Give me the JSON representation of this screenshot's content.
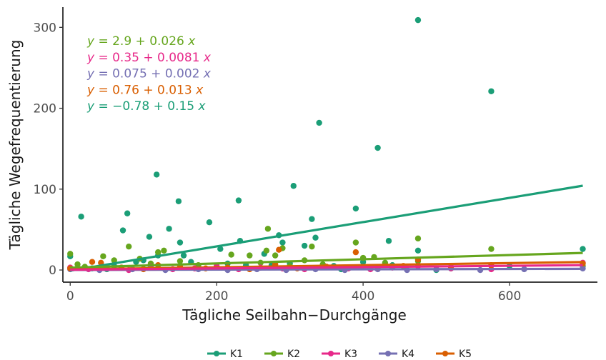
{
  "chart_data": {
    "type": "scatter",
    "xlabel": "Tägliche Seilbahn−Durchgänge",
    "ylabel": "Tägliche Wegefrequentierung",
    "xlim": [
      -10,
      720
    ],
    "ylim": [
      -15,
      325
    ],
    "x_ticks": [
      0,
      200,
      400,
      600
    ],
    "y_ticks": [
      0,
      100,
      200,
      300
    ],
    "x_tick_labels": [
      "0",
      "200",
      "400",
      "600"
    ],
    "y_tick_labels": [
      "0",
      "100",
      "200",
      "300"
    ],
    "grid": false,
    "legend_position": "bottom",
    "series": [
      {
        "name": "K1",
        "color": "#1b9e77",
        "equation": "y = −0.78 + 0.15 x",
        "intercept": -0.78,
        "slope": 0.15,
        "points": [
          [
            0,
            17
          ],
          [
            15,
            66
          ],
          [
            30,
            2
          ],
          [
            50,
            1
          ],
          [
            60,
            5
          ],
          [
            72,
            49
          ],
          [
            78,
            70
          ],
          [
            90,
            10
          ],
          [
            100,
            12
          ],
          [
            108,
            41
          ],
          [
            118,
            118
          ],
          [
            120,
            18
          ],
          [
            135,
            51
          ],
          [
            148,
            85
          ],
          [
            150,
            34
          ],
          [
            155,
            18
          ],
          [
            165,
            10
          ],
          [
            190,
            59
          ],
          [
            205,
            26
          ],
          [
            215,
            8
          ],
          [
            230,
            86
          ],
          [
            232,
            36
          ],
          [
            240,
            6
          ],
          [
            265,
            20
          ],
          [
            275,
            6
          ],
          [
            285,
            43
          ],
          [
            290,
            34
          ],
          [
            300,
            8
          ],
          [
            305,
            104
          ],
          [
            320,
            30
          ],
          [
            330,
            63
          ],
          [
            335,
            40
          ],
          [
            340,
            182
          ],
          [
            360,
            5
          ],
          [
            370,
            1
          ],
          [
            390,
            76
          ],
          [
            400,
            10
          ],
          [
            410,
            3
          ],
          [
            420,
            151
          ],
          [
            435,
            36
          ],
          [
            440,
            6
          ],
          [
            475,
            309
          ],
          [
            475,
            24
          ],
          [
            500,
            0
          ],
          [
            520,
            2
          ],
          [
            575,
            221
          ],
          [
            600,
            5
          ],
          [
            700,
            26
          ]
        ]
      },
      {
        "name": "K2",
        "color": "#66a61e",
        "equation": "y = 2.9 + 0.026 x",
        "intercept": 2.9,
        "slope": 0.026,
        "points": [
          [
            0,
            20
          ],
          [
            10,
            7
          ],
          [
            20,
            4
          ],
          [
            45,
            17
          ],
          [
            60,
            12
          ],
          [
            80,
            29
          ],
          [
            95,
            14
          ],
          [
            110,
            8
          ],
          [
            120,
            22
          ],
          [
            128,
            24
          ],
          [
            150,
            11
          ],
          [
            175,
            6
          ],
          [
            220,
            19
          ],
          [
            245,
            18
          ],
          [
            260,
            9
          ],
          [
            268,
            24
          ],
          [
            270,
            51
          ],
          [
            280,
            18
          ],
          [
            290,
            27
          ],
          [
            300,
            5
          ],
          [
            320,
            12
          ],
          [
            330,
            29
          ],
          [
            345,
            7
          ],
          [
            390,
            34
          ],
          [
            400,
            15
          ],
          [
            415,
            16
          ],
          [
            430,
            9
          ],
          [
            475,
            39
          ],
          [
            475,
            11
          ],
          [
            575,
            26
          ],
          [
            700,
            5
          ]
        ]
      },
      {
        "name": "K3",
        "color": "#e7298a",
        "equation": "y = 0.35 + 0.0081 x",
        "intercept": 0.35,
        "slope": 0.0081,
        "points": [
          [
            0,
            3
          ],
          [
            25,
            1
          ],
          [
            50,
            2
          ],
          [
            80,
            0
          ],
          [
            110,
            4
          ],
          [
            140,
            1
          ],
          [
            170,
            2
          ],
          [
            200,
            5
          ],
          [
            230,
            1
          ],
          [
            260,
            3
          ],
          [
            290,
            2
          ],
          [
            320,
            1
          ],
          [
            350,
            4
          ],
          [
            380,
            2
          ],
          [
            410,
            1
          ],
          [
            440,
            3
          ],
          [
            475,
            5
          ],
          [
            520,
            2
          ],
          [
            575,
            1
          ],
          [
            700,
            9
          ]
        ]
      },
      {
        "name": "K4",
        "color": "#7570b3",
        "equation": "y = 0.075 + 0.002 x",
        "intercept": 0.075,
        "slope": 0.002,
        "points": [
          [
            0,
            1
          ],
          [
            40,
            0
          ],
          [
            85,
            1
          ],
          [
            130,
            0
          ],
          [
            175,
            1
          ],
          [
            215,
            0
          ],
          [
            255,
            1
          ],
          [
            295,
            0
          ],
          [
            335,
            1
          ],
          [
            375,
            0
          ],
          [
            420,
            1
          ],
          [
            460,
            0
          ],
          [
            500,
            1
          ],
          [
            560,
            0
          ],
          [
            620,
            1
          ],
          [
            700,
            2
          ]
        ]
      },
      {
        "name": "K5",
        "color": "#d95f02",
        "equation": "y = 0.76 + 0.013 x",
        "intercept": 0.76,
        "slope": 0.013,
        "points": [
          [
            0,
            2
          ],
          [
            30,
            10
          ],
          [
            42,
            9
          ],
          [
            70,
            3
          ],
          [
            100,
            1
          ],
          [
            120,
            6
          ],
          [
            150,
            4
          ],
          [
            185,
            2
          ],
          [
            215,
            3
          ],
          [
            245,
            1
          ],
          [
            280,
            7
          ],
          [
            285,
            25
          ],
          [
            310,
            2
          ],
          [
            350,
            4
          ],
          [
            390,
            22
          ],
          [
            420,
            3
          ],
          [
            455,
            5
          ],
          [
            475,
            13
          ],
          [
            520,
            4
          ],
          [
            575,
            6
          ],
          [
            700,
            8
          ]
        ]
      }
    ],
    "equations_order": [
      "K2",
      "K3",
      "K4",
      "K5",
      "K1"
    ],
    "legend_order": [
      "K1",
      "K2",
      "K3",
      "K4",
      "K5"
    ]
  }
}
